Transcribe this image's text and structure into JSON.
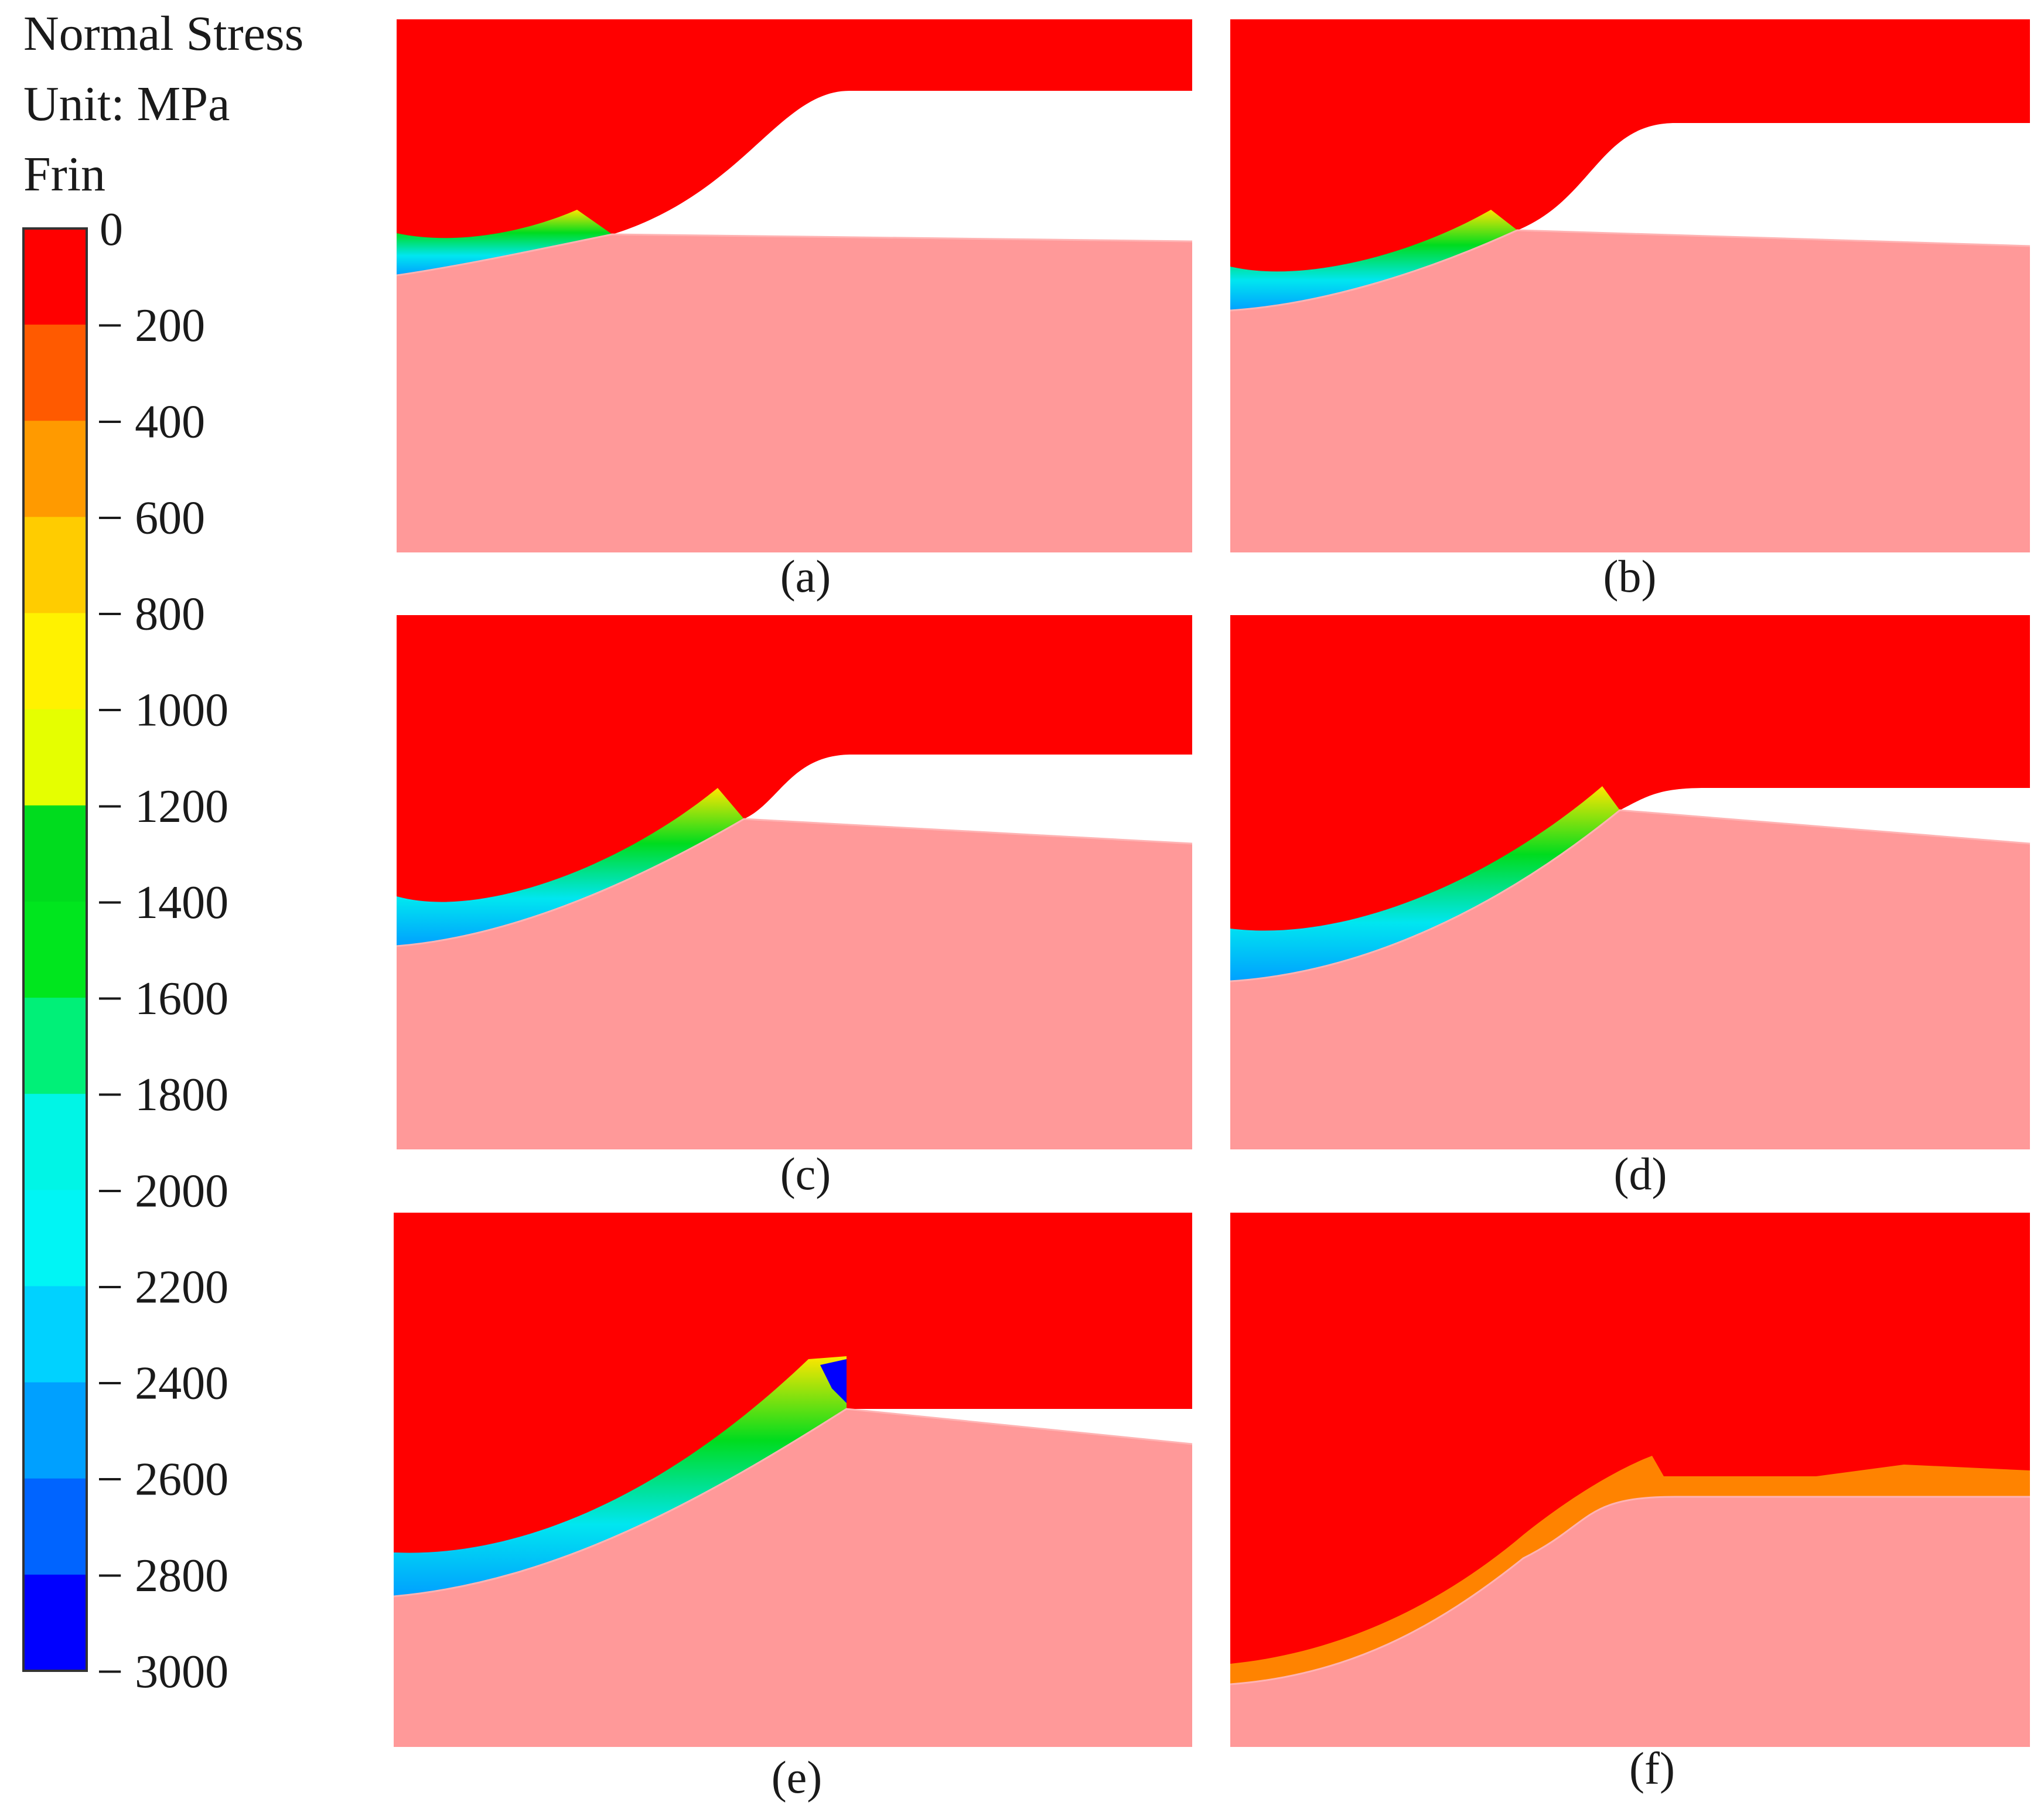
{
  "legend": {
    "title_line1": "Normal Stress",
    "title_line2": "Unit: MPa",
    "title_line3": "Frin",
    "labels": [
      "0",
      "− 200",
      "− 400",
      "− 600",
      "− 800",
      "− 1000",
      "− 1200",
      "− 1400",
      "− 1600",
      "− 1800",
      "− 2000",
      "− 2200",
      "− 2400",
      "− 2600",
      "− 2800",
      "− 3000"
    ],
    "colors": [
      "#ff0000",
      "#ff5a00",
      "#ff9a00",
      "#ffcc00",
      "#fff200",
      "#e5ff00",
      "#00dc1e",
      "#00e61e",
      "#00f078",
      "#00f5e6",
      "#00f5f5",
      "#00d2ff",
      "#00a0ff",
      "#0064ff",
      "#0000ff"
    ]
  },
  "panels": [
    {
      "caption": "(a)"
    },
    {
      "caption": "(b)"
    },
    {
      "caption": "(c)"
    },
    {
      "caption": "(d)"
    },
    {
      "caption": "(e)"
    },
    {
      "caption": "(f)"
    }
  ],
  "colors": {
    "chip": "#ff0000",
    "workpiece": "#ff9999",
    "background": "#ffffff"
  }
}
